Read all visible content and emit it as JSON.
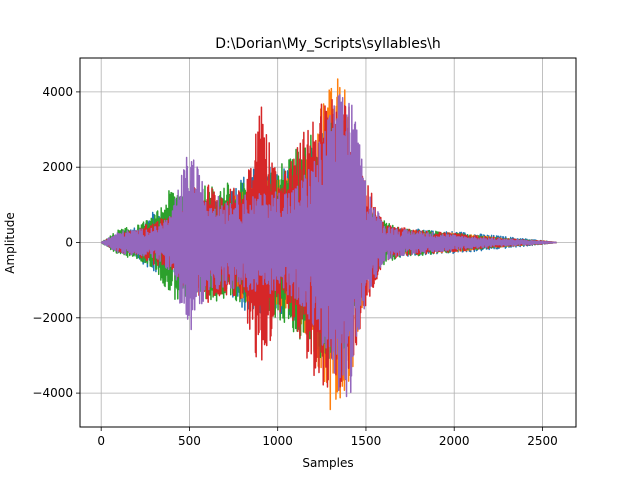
{
  "chart_data": {
    "type": "line",
    "title": "D:\\Dorian\\My_Scripts\\syllables\\h",
    "xlabel": "Samples",
    "ylabel": "Amplitude",
    "xlim": [
      -120,
      2690
    ],
    "ylim": [
      -4900,
      4900
    ],
    "x_ticks": [
      0,
      500,
      1000,
      1500,
      2000,
      2500
    ],
    "x_tick_labels": [
      "0",
      "500",
      "1000",
      "1500",
      "2000",
      "2500"
    ],
    "y_ticks": [
      -4000,
      -2000,
      0,
      2000,
      4000
    ],
    "y_tick_labels": [
      "−4000",
      "−2000",
      "0",
      "2000",
      "4000"
    ],
    "grid": true,
    "legend": "none",
    "series": [
      {
        "color": "#1f77b4",
        "x": [
          0,
          100,
          200,
          300,
          400,
          500,
          600,
          700,
          800,
          900,
          1000,
          1100,
          1200,
          1300,
          1400,
          1500,
          1600,
          1700,
          1800,
          1900,
          2000,
          2100,
          2200,
          2300,
          2400,
          2500,
          2580
        ],
        "envelope": [
          0,
          250,
          400,
          850,
          700,
          1500,
          900,
          1300,
          1800,
          2100,
          2000,
          2200,
          2600,
          3500,
          3200,
          900,
          400,
          400,
          350,
          300,
          300,
          250,
          200,
          150,
          100,
          50,
          0
        ]
      },
      {
        "color": "#ff7f0e",
        "x": [
          0,
          100,
          200,
          300,
          400,
          500,
          600,
          700,
          800,
          900,
          1000,
          1100,
          1200,
          1300,
          1400,
          1500,
          1600,
          1700,
          1800,
          1900,
          2000,
          2100,
          2200,
          2300,
          2400,
          2500,
          2580
        ],
        "envelope": [
          0,
          200,
          300,
          450,
          500,
          1200,
          800,
          1100,
          1500,
          1800,
          1700,
          2000,
          2800,
          4500,
          4400,
          1000,
          400,
          350,
          300,
          280,
          250,
          200,
          150,
          100,
          70,
          40,
          0
        ]
      },
      {
        "color": "#2ca02c",
        "x": [
          0,
          100,
          200,
          300,
          400,
          500,
          600,
          700,
          800,
          900,
          1000,
          1100,
          1200,
          1300,
          1400,
          1500,
          1600,
          1700,
          1800,
          1900,
          2000,
          2100,
          2200,
          2300,
          2400,
          2500,
          2580
        ],
        "envelope": [
          0,
          350,
          450,
          700,
          1500,
          1700,
          1500,
          1600,
          1600,
          1900,
          2000,
          2500,
          3000,
          3300,
          2800,
          1000,
          600,
          350,
          350,
          300,
          250,
          200,
          150,
          100,
          70,
          40,
          0
        ]
      },
      {
        "color": "#d62728",
        "x": [
          0,
          100,
          200,
          300,
          400,
          500,
          600,
          700,
          800,
          900,
          1000,
          1100,
          1200,
          1300,
          1400,
          1500,
          1600,
          1700,
          1800,
          1900,
          2000,
          2100,
          2200,
          2300,
          2400,
          2500,
          2580
        ],
        "envelope": [
          0,
          250,
          350,
          600,
          700,
          1400,
          1600,
          1400,
          1500,
          3900,
          1800,
          2400,
          3600,
          4000,
          3700,
          1800,
          500,
          400,
          320,
          280,
          250,
          200,
          150,
          100,
          70,
          40,
          0
        ]
      },
      {
        "color": "#9467bd",
        "x": [
          0,
          100,
          200,
          300,
          400,
          500,
          600,
          700,
          800,
          900,
          1000,
          1100,
          1200,
          1300,
          1400,
          1500,
          1600,
          1700,
          1800,
          1900,
          2000,
          2100,
          2200,
          2300,
          2400,
          2500,
          2580
        ],
        "envelope": [
          0,
          300,
          350,
          400,
          800,
          2600,
          1300,
          1200,
          1300,
          1300,
          1400,
          1500,
          2200,
          3600,
          4400,
          1600,
          500,
          350,
          300,
          250,
          200,
          150,
          120,
          90,
          60,
          30,
          0
        ]
      }
    ]
  }
}
